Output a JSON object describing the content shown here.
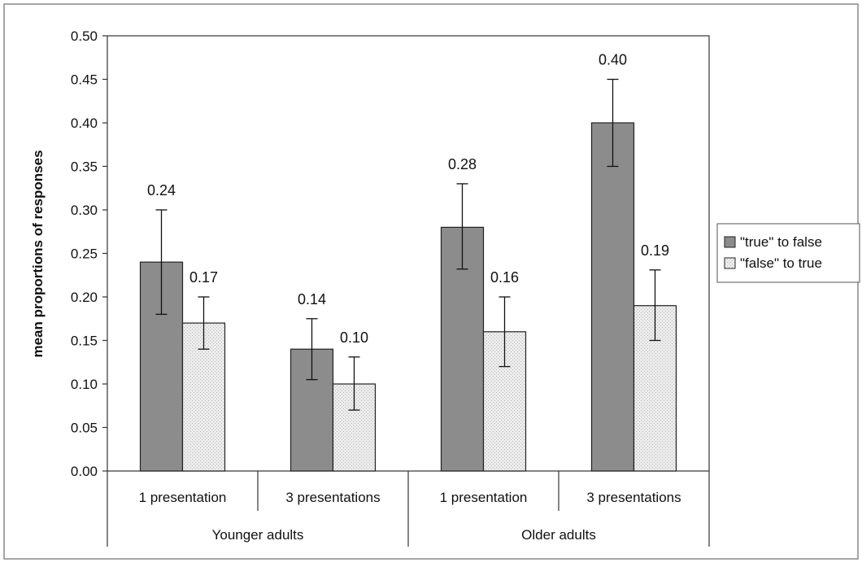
{
  "chart_data": {
    "type": "bar",
    "title": "",
    "ylabel": "mean proportions of responses",
    "ylim": [
      0,
      0.5
    ],
    "yticks": [
      "0.00",
      "0.05",
      "0.10",
      "0.15",
      "0.20",
      "0.25",
      "0.30",
      "0.35",
      "0.40",
      "0.45",
      "0.50"
    ],
    "grid": false,
    "legend_position": "right",
    "groups": [
      {
        "label": "Younger adults",
        "categories": [
          "1 presentation",
          "3 presentations"
        ]
      },
      {
        "label": "Older adults",
        "categories": [
          "1 presentation",
          "3 presentations"
        ]
      }
    ],
    "series": [
      {
        "name": "\"true\" to false",
        "color": "#8c8c8c",
        "values": [
          0.24,
          0.14,
          0.28,
          0.4
        ],
        "labels": [
          "0.24",
          "0.14",
          "0.28",
          "0.40"
        ],
        "error_low": [
          0.18,
          0.105,
          0.232,
          0.35
        ],
        "error_high": [
          0.3,
          0.175,
          0.33,
          0.45
        ]
      },
      {
        "name": "\"false\" to true",
        "color": "#e4e4e4",
        "values": [
          0.17,
          0.1,
          0.16,
          0.19
        ],
        "labels": [
          "0.17",
          "0.10",
          "0.16",
          "0.19"
        ],
        "error_low": [
          0.14,
          0.07,
          0.12,
          0.15
        ],
        "error_high": [
          0.2,
          0.131,
          0.2,
          0.231
        ]
      }
    ]
  }
}
